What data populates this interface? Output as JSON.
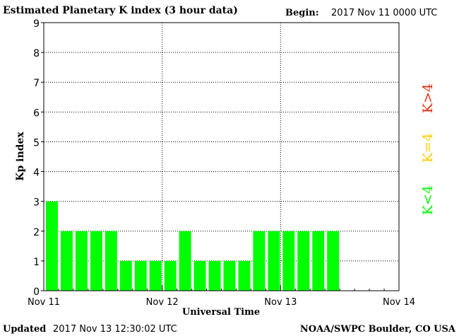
{
  "header": {
    "title": "Estimated Planetary K index (3 hour data)",
    "begin_label": "Begin:",
    "begin_value": "2017 Nov 11 0000 UTC"
  },
  "footer": {
    "updated_label": "Updated",
    "updated_value": "2017 Nov 13 12:30:02 UTC",
    "source": "NOAA/SWPC Boulder, CO USA"
  },
  "legend": {
    "storm": "K>4",
    "active": "K=4",
    "quiet": "K<4"
  },
  "colors": {
    "quiet": "#00ff00",
    "active": "#ffcc00",
    "storm": "#e03010",
    "axis": "#000000"
  },
  "chart_data": {
    "type": "bar",
    "title": "Estimated Planetary K index (3 hour data)",
    "xlabel": "Universal Time",
    "ylabel": "Kp index",
    "ylim": [
      0,
      9
    ],
    "yticks": [
      0,
      1,
      2,
      3,
      4,
      5,
      6,
      7,
      8,
      9
    ],
    "xlim_days": [
      0,
      3
    ],
    "xtick_labels": [
      "Nov 11",
      "Nov 12",
      "Nov 13",
      "Nov 14"
    ],
    "slots_per_day": 8,
    "grid": true,
    "series": [
      {
        "values": [
          3,
          2,
          2,
          2,
          2,
          1,
          1,
          1,
          1,
          2,
          1,
          1,
          1,
          1,
          2,
          2,
          2,
          2,
          2,
          2
        ]
      }
    ]
  }
}
